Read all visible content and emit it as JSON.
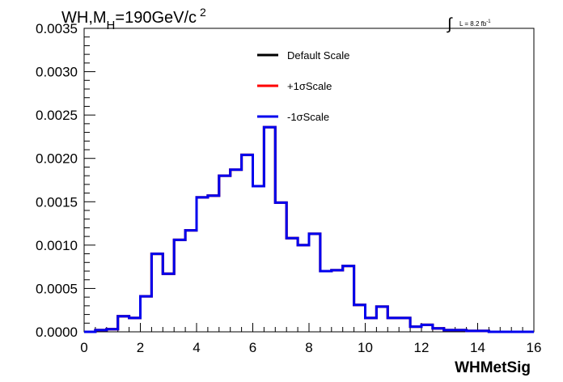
{
  "chart_data": {
    "type": "line",
    "title": {
      "prefix": "WH,M",
      "subscript": "H",
      "suffix": "=190GeV/c",
      "superscript": "2"
    },
    "luminosity": {
      "text": "L = 8.2 fb",
      "superscript": "-1"
    },
    "xlabel": "WHMetSig",
    "ylabel": "",
    "xlim": [
      0,
      16
    ],
    "ylim": [
      0,
      0.0035
    ],
    "x_ticks": [
      "0",
      "2",
      "4",
      "6",
      "8",
      "10",
      "12",
      "14",
      "16"
    ],
    "y_ticks": [
      "0.0000",
      "0.0005",
      "0.0010",
      "0.0015",
      "0.0020",
      "0.0025",
      "0.0030",
      "0.0035"
    ],
    "grid": false,
    "legend_position": "top-center",
    "bin_width": 0.4,
    "series": [
      {
        "name": "Default Scale",
        "color": "#000000",
        "values": [
          0,
          2e-05,
          3e-05,
          0.00018,
          0.00016,
          0.00041,
          0.0009,
          0.00067,
          0.00106,
          0.00117,
          0.00155,
          0.00157,
          0.0018,
          0.00187,
          0.00204,
          0.00168,
          0.00236,
          0.00149,
          0.00108,
          0.001,
          0.00113,
          0.0007,
          0.00071,
          0.00076,
          0.00031,
          0.00016,
          0.00029,
          0.00016,
          0.00016,
          6e-05,
          8e-05,
          4e-05,
          2e-05,
          2e-05,
          1e-05,
          1e-05,
          0,
          0,
          0,
          0
        ]
      },
      {
        "name": "+1σScale",
        "color": "#ff0000",
        "values": [
          0,
          2e-05,
          3e-05,
          0.00018,
          0.00016,
          0.00041,
          0.0009,
          0.00067,
          0.00106,
          0.00117,
          0.00155,
          0.00157,
          0.0018,
          0.00187,
          0.00204,
          0.00168,
          0.00236,
          0.00149,
          0.00108,
          0.001,
          0.00113,
          0.0007,
          0.00071,
          0.00076,
          0.00031,
          0.00016,
          0.00029,
          0.00016,
          0.00016,
          6e-05,
          8e-05,
          4e-05,
          2e-05,
          2e-05,
          1e-05,
          1e-05,
          0,
          0,
          0,
          0
        ]
      },
      {
        "name": "-1σScale",
        "color": "#0000ee",
        "values": [
          0,
          2e-05,
          3e-05,
          0.00018,
          0.00016,
          0.00041,
          0.0009,
          0.00067,
          0.00106,
          0.00117,
          0.00155,
          0.00157,
          0.0018,
          0.00187,
          0.00204,
          0.00168,
          0.00236,
          0.00149,
          0.00108,
          0.001,
          0.00113,
          0.0007,
          0.00071,
          0.00076,
          0.00031,
          0.00016,
          0.00029,
          0.00016,
          0.00016,
          6e-05,
          8e-05,
          4e-05,
          2e-05,
          2e-05,
          1e-05,
          1e-05,
          0,
          0,
          0,
          0
        ]
      }
    ]
  }
}
